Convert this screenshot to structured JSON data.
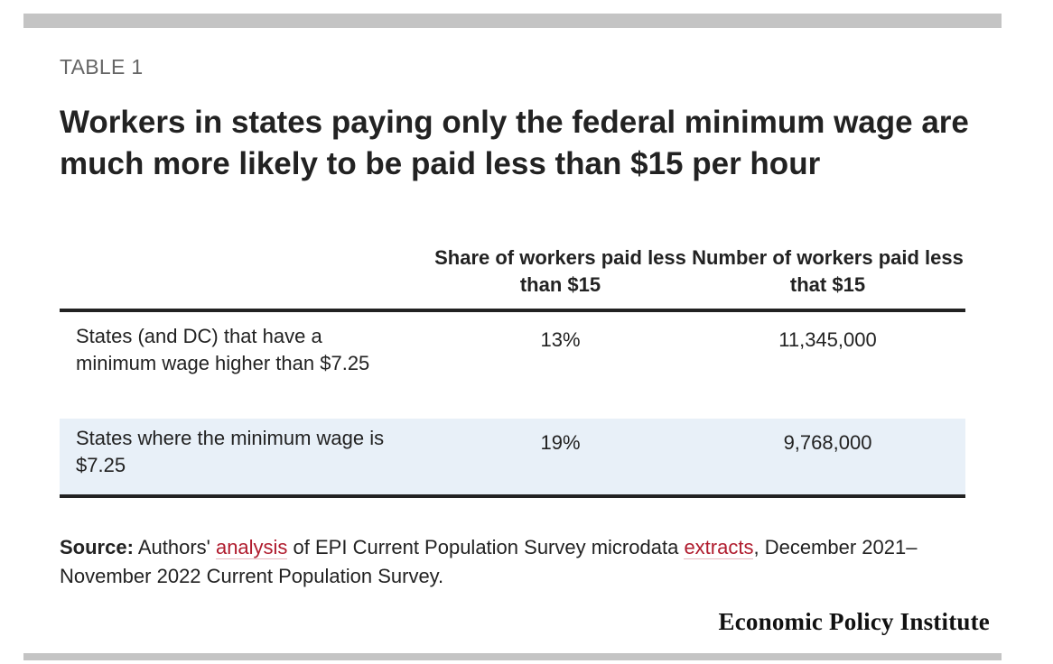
{
  "table_label": "TABLE 1",
  "title": "Workers in states paying only the federal minimum wage are much more likely to be paid less than $15 per hour",
  "chart_data": {
    "type": "table",
    "title": "Workers in states paying only the federal minimum wage are much more likely to be paid less than $15 per hour",
    "columns": [
      "",
      "Share of workers paid less than $15",
      "Number of workers paid less that $15"
    ],
    "rows": [
      [
        "States (and DC) that have a minimum wage higher than $7.25",
        "13%",
        "11,345,000"
      ],
      [
        "States where the minimum wage is $7.25",
        "19%",
        "9,768,000"
      ]
    ]
  },
  "source": {
    "label": "Source:",
    "text_1": " Authors' ",
    "link_1": "analysis",
    "text_2": " of EPI Current Population Survey microdata ",
    "link_2": "extracts",
    "text_3": ", December 2021–November 2022 Current Population Survey."
  },
  "brand": "Economic Policy Institute",
  "colors": {
    "rule": "#c4c4c4",
    "highlight_row": "#e8f0f8",
    "link": "#b01c2e"
  }
}
